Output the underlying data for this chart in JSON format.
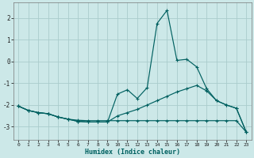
{
  "xlabel": "Humidex (Indice chaleur)",
  "background_color": "#cce8e8",
  "grid_color": "#aacccc",
  "line_color": "#006060",
  "xlim": [
    -0.5,
    23.5
  ],
  "ylim": [
    -3.6,
    2.7
  ],
  "yticks": [
    -3,
    -2,
    -1,
    0,
    1,
    2
  ],
  "xticks": [
    0,
    1,
    2,
    3,
    4,
    5,
    6,
    7,
    8,
    9,
    10,
    11,
    12,
    13,
    14,
    15,
    16,
    17,
    18,
    19,
    20,
    21,
    22,
    23
  ],
  "line1_x": [
    0,
    1,
    2,
    3,
    4,
    5,
    6,
    7,
    8,
    9,
    10,
    11,
    12,
    13,
    14,
    15,
    16,
    17,
    18,
    19,
    20,
    21,
    22,
    23
  ],
  "line1_y": [
    -2.05,
    -2.25,
    -2.35,
    -2.4,
    -2.55,
    -2.65,
    -2.7,
    -2.72,
    -2.72,
    -2.72,
    -2.72,
    -2.72,
    -2.72,
    -2.72,
    -2.72,
    -2.72,
    -2.72,
    -2.72,
    -2.72,
    -2.72,
    -2.72,
    -2.72,
    -2.72,
    -3.25
  ],
  "line2_x": [
    0,
    1,
    2,
    3,
    4,
    5,
    6,
    7,
    8,
    9,
    10,
    11,
    12,
    13,
    14,
    15,
    16,
    17,
    18,
    19,
    20,
    21,
    22,
    23
  ],
  "line2_y": [
    -2.05,
    -2.25,
    -2.35,
    -2.4,
    -2.55,
    -2.65,
    -2.75,
    -2.78,
    -2.78,
    -2.78,
    -2.5,
    -2.35,
    -2.2,
    -2.0,
    -1.8,
    -1.6,
    -1.4,
    -1.25,
    -1.1,
    -1.35,
    -1.8,
    -2.0,
    -2.15,
    -3.25
  ],
  "line3_x": [
    0,
    1,
    2,
    3,
    4,
    5,
    6,
    7,
    8,
    9,
    10,
    11,
    12,
    13,
    14,
    15,
    16,
    17,
    18,
    19,
    20,
    21,
    22,
    23
  ],
  "line3_y": [
    -2.05,
    -2.25,
    -2.35,
    -2.4,
    -2.55,
    -2.65,
    -2.75,
    -2.78,
    -2.78,
    -2.78,
    -1.5,
    -1.3,
    -1.7,
    -1.2,
    1.75,
    2.35,
    0.05,
    0.1,
    -0.25,
    -1.25,
    -1.8,
    -2.0,
    -2.15,
    -3.25
  ]
}
